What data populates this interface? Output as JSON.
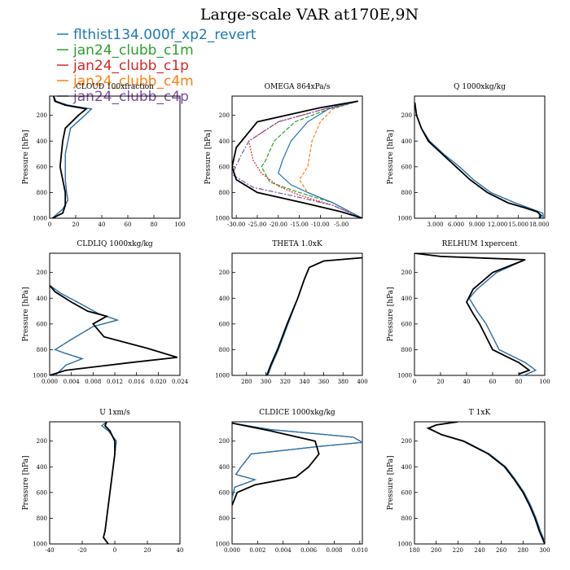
{
  "title": "Large-scale VAR at170E,9N",
  "legend": [
    {
      "name": "flthist134.000f_xp2_revert",
      "color": "#1f77b4"
    },
    {
      "name": "jan24_clubb_c1m",
      "color": "#2ca02c"
    },
    {
      "name": "jan24_clubb_c1p",
      "color": "#d62728"
    },
    {
      "name": "jan24_clubb_c4m",
      "color": "#ff7f0e"
    },
    {
      "name": "jan24_clubb_c4p",
      "color": "#7b4ea3"
    }
  ],
  "black_color": "#000000",
  "chart_data": [
    {
      "type": "line",
      "title": "CLOUD  100xfraction",
      "ylabel": "Pressure [hPa]",
      "xlim": [
        0,
        100
      ],
      "xticks": [
        0,
        20,
        40,
        60,
        80,
        100
      ],
      "xtick_labels": [
        "0",
        "20",
        "40",
        "60",
        "80",
        "100"
      ],
      "ylim": [
        1000,
        50
      ],
      "yticks": [
        200,
        400,
        600,
        800,
        1000
      ],
      "black": [
        [
          3,
          50
        ],
        [
          4,
          90
        ],
        [
          12,
          120
        ],
        [
          28,
          150
        ],
        [
          22,
          200
        ],
        [
          12,
          300
        ],
        [
          10,
          400
        ],
        [
          9,
          500
        ],
        [
          8,
          600
        ],
        [
          10,
          700
        ],
        [
          12,
          800
        ],
        [
          12,
          900
        ],
        [
          10,
          960
        ],
        [
          2,
          1000
        ]
      ],
      "others": [
        [
          3,
          50
        ],
        [
          5,
          90
        ],
        [
          14,
          120
        ],
        [
          32,
          150
        ],
        [
          27,
          200
        ],
        [
          16,
          300
        ],
        [
          14,
          400
        ],
        [
          12,
          500
        ],
        [
          12,
          600
        ],
        [
          12,
          700
        ],
        [
          13,
          800
        ],
        [
          14,
          860
        ],
        [
          10,
          930
        ],
        [
          2,
          1000
        ]
      ]
    },
    {
      "type": "line",
      "title": "OMEGA  864xPa/s",
      "ylabel": "Pressure [hPa]",
      "xlim": [
        -31,
        0
      ],
      "xticks": [
        -30,
        -25,
        -20,
        -15,
        -10,
        -5
      ],
      "xtick_labels": [
        "-30.00",
        "-25.00",
        "-20.00",
        "-15.00",
        "-10.00",
        "-5.00"
      ],
      "ylim": [
        1000,
        50
      ],
      "yticks": [
        200,
        400,
        600,
        800,
        1000
      ],
      "black": [
        [
          -1,
          90
        ],
        [
          -10,
          140
        ],
        [
          -25,
          250
        ],
        [
          -30,
          450
        ],
        [
          -31,
          600
        ],
        [
          -30,
          700
        ],
        [
          -25,
          800
        ],
        [
          -14,
          880
        ],
        [
          -5,
          950
        ],
        [
          0,
          1000
        ]
      ],
      "series": [
        {
          "values": [
            [
              -1,
              90
            ],
            [
              -8,
              150
            ],
            [
              -13,
              250
            ],
            [
              -17,
              400
            ],
            [
              -19,
              550
            ],
            [
              -20,
              650
            ],
            [
              -17,
              740
            ],
            [
              -13,
              800
            ],
            [
              -7,
              880
            ],
            [
              0,
              1000
            ]
          ]
        },
        {
          "values": [
            [
              -1,
              90
            ],
            [
              -8,
              150
            ],
            [
              -16,
              250
            ],
            [
              -21,
              400
            ],
            [
              -23,
              550
            ],
            [
              -24,
              600
            ],
            [
              -22,
              720
            ],
            [
              -15,
              800
            ],
            [
              -7,
              880
            ],
            [
              0,
              1000
            ]
          ]
        },
        {
          "values": [
            [
              -1,
              90
            ],
            [
              -9,
              150
            ],
            [
              -20,
              250
            ],
            [
              -27,
              400
            ],
            [
              -26,
              550
            ],
            [
              -24,
              650
            ],
            [
              -20,
              750
            ],
            [
              -15,
              820
            ],
            [
              -7,
              900
            ],
            [
              0,
              1000
            ]
          ]
        },
        {
          "values": [
            [
              -1,
              90
            ],
            [
              -7,
              150
            ],
            [
              -10,
              250
            ],
            [
              -12,
              400
            ],
            [
              -13,
              600
            ],
            [
              -15,
              700
            ],
            [
              -13,
              800
            ],
            [
              -7,
              880
            ],
            [
              0,
              1000
            ]
          ]
        },
        {
          "values": [
            [
              -1,
              90
            ],
            [
              -9,
              150
            ],
            [
              -20,
              250
            ],
            [
              -27,
              400
            ],
            [
              -29,
              520
            ],
            [
              -31,
              660
            ],
            [
              -26,
              760
            ],
            [
              -16,
              830
            ],
            [
              -7,
              900
            ],
            [
              0,
              1000
            ]
          ]
        }
      ]
    },
    {
      "type": "line",
      "title": "Q  1000xkg/kg",
      "ylabel": "Pressure [hPa]",
      "xlim": [
        0,
        18.8
      ],
      "xticks": [
        3,
        6,
        9,
        12,
        15,
        18
      ],
      "xtick_labels": [
        "3.000",
        "6.000",
        "9.000",
        "12.000",
        "15.000",
        "18.000"
      ],
      "ylim": [
        1000,
        50
      ],
      "yticks": [
        200,
        400,
        600,
        800,
        1000
      ],
      "black": [
        [
          0.05,
          100
        ],
        [
          0.3,
          200
        ],
        [
          1,
          300
        ],
        [
          2,
          400
        ],
        [
          4,
          500
        ],
        [
          6,
          600
        ],
        [
          8,
          700
        ],
        [
          10.5,
          800
        ],
        [
          13.5,
          880
        ],
        [
          16,
          920
        ],
        [
          17.7,
          950
        ],
        [
          18.3,
          980
        ],
        [
          18,
          1000
        ]
      ],
      "others": [
        [
          0.05,
          100
        ],
        [
          0.3,
          200
        ],
        [
          1,
          300
        ],
        [
          2.2,
          400
        ],
        [
          4.2,
          500
        ],
        [
          6.5,
          600
        ],
        [
          8.5,
          700
        ],
        [
          11,
          800
        ],
        [
          14.5,
          880
        ],
        [
          17,
          930
        ],
        [
          18.5,
          960
        ],
        [
          18.6,
          990
        ],
        [
          18.3,
          1000
        ]
      ]
    },
    {
      "type": "line",
      "title": "CLDLIQ  1000xkg/kg",
      "ylabel": "Pressure [hPa]",
      "xlim": [
        0,
        0.024
      ],
      "xticks": [
        0,
        0.004,
        0.008,
        0.012,
        0.016,
        0.02,
        0.024
      ],
      "xtick_labels": [
        "0.000",
        "0.004",
        "0.008",
        "0.012",
        "0.016",
        "0.020",
        "0.024"
      ],
      "ylim": [
        1000,
        50
      ],
      "yticks": [
        200,
        400,
        600,
        800,
        1000
      ],
      "black": [
        [
          0,
          300
        ],
        [
          0.001,
          350
        ],
        [
          0.004,
          430
        ],
        [
          0.007,
          500
        ],
        [
          0.0105,
          540
        ],
        [
          0.008,
          600
        ],
        [
          0.01,
          700
        ],
        [
          0.018,
          790
        ],
        [
          0.0235,
          860
        ],
        [
          0.015,
          900
        ],
        [
          0.003,
          960
        ],
        [
          0,
          1000
        ]
      ],
      "others": [
        [
          0,
          300
        ],
        [
          0.002,
          360
        ],
        [
          0.006,
          450
        ],
        [
          0.009,
          520
        ],
        [
          0.0125,
          570
        ],
        [
          0.008,
          620
        ],
        [
          0.004,
          720
        ],
        [
          0.001,
          800
        ],
        [
          0.003,
          830
        ],
        [
          0.006,
          870
        ],
        [
          0.003,
          920
        ],
        [
          0.001,
          1000
        ]
      ]
    },
    {
      "type": "line",
      "title": "THETA  1.0xK",
      "ylabel": "",
      "xlim": [
        265,
        400
      ],
      "xticks": [
        280,
        300,
        320,
        340,
        360,
        380,
        400
      ],
      "xtick_labels": [
        "280",
        "300",
        "320",
        "340",
        "360",
        "380",
        "400"
      ],
      "ylim": [
        1000,
        50
      ],
      "yticks": [
        200,
        400,
        600,
        800,
        1000
      ],
      "black": [
        [
          400,
          85
        ],
        [
          360,
          110
        ],
        [
          345,
          160
        ],
        [
          340,
          250
        ],
        [
          333,
          400
        ],
        [
          322,
          600
        ],
        [
          312,
          800
        ],
        [
          305,
          920
        ],
        [
          301,
          1000
        ]
      ],
      "others": [
        [
          400,
          85
        ],
        [
          360,
          110
        ],
        [
          345,
          160
        ],
        [
          340,
          250
        ],
        [
          333,
          400
        ],
        [
          323,
          600
        ],
        [
          313,
          800
        ],
        [
          306,
          920
        ],
        [
          302,
          1000
        ]
      ]
    },
    {
      "type": "line",
      "title": "RELHUM  1xpercent",
      "ylabel": "Pressure [hPa]",
      "xlim": [
        0,
        100
      ],
      "xticks": [
        0,
        20,
        40,
        60,
        80,
        100
      ],
      "xtick_labels": [
        "0",
        "20",
        "40",
        "60",
        "80",
        "100"
      ],
      "ylim": [
        1000,
        50
      ],
      "yticks": [
        200,
        400,
        600,
        800,
        1000
      ],
      "black": [
        [
          0,
          50
        ],
        [
          20,
          75
        ],
        [
          85,
          100
        ],
        [
          60,
          200
        ],
        [
          45,
          330
        ],
        [
          40,
          430
        ],
        [
          45,
          520
        ],
        [
          50,
          600
        ],
        [
          55,
          700
        ],
        [
          60,
          800
        ],
        [
          80,
          900
        ],
        [
          88,
          960
        ],
        [
          80,
          990
        ]
      ],
      "others": [
        [
          0,
          50
        ],
        [
          20,
          75
        ],
        [
          85,
          100
        ],
        [
          63,
          200
        ],
        [
          48,
          330
        ],
        [
          42,
          400
        ],
        [
          48,
          500
        ],
        [
          55,
          600
        ],
        [
          60,
          700
        ],
        [
          65,
          800
        ],
        [
          85,
          900
        ],
        [
          93,
          960
        ],
        [
          84,
          1000
        ]
      ]
    },
    {
      "type": "line",
      "title": "U  1xm/s",
      "ylabel": "Pressure [hPa]",
      "xlim": [
        -40,
        40
      ],
      "xticks": [
        -40,
        -20,
        0,
        20,
        40
      ],
      "xtick_labels": [
        "-40",
        "-20",
        "0",
        "20",
        "40"
      ],
      "ylim": [
        1000,
        50
      ],
      "yticks": [
        200,
        400,
        600,
        800,
        1000
      ],
      "black": [
        [
          -5,
          50
        ],
        [
          -6,
          80
        ],
        [
          -3,
          120
        ],
        [
          0,
          200
        ],
        [
          0,
          300
        ],
        [
          -2,
          500
        ],
        [
          -4,
          700
        ],
        [
          -6,
          900
        ],
        [
          -7,
          950
        ],
        [
          -4,
          1000
        ]
      ],
      "others": [
        [
          -5,
          50
        ],
        [
          -8,
          80
        ],
        [
          -4,
          120
        ],
        [
          1,
          200
        ],
        [
          0,
          300
        ],
        [
          -2,
          500
        ],
        [
          -4,
          700
        ],
        [
          -6,
          900
        ],
        [
          -7,
          950
        ],
        [
          -4,
          1000
        ]
      ]
    },
    {
      "type": "line",
      "title": "CLDICE  1000xkg/kg",
      "ylabel": "",
      "xlim": [
        0,
        0.0102
      ],
      "xticks": [
        0,
        0.002,
        0.004,
        0.006,
        0.008,
        0.01
      ],
      "xtick_labels": [
        "0.000",
        "0.002",
        "0.004",
        "0.006",
        "0.008",
        "0.010"
      ],
      "ylim": [
        1000,
        50
      ],
      "yticks": [
        200,
        400,
        600,
        800,
        1000
      ],
      "black": [
        [
          0,
          60
        ],
        [
          0.003,
          120
        ],
        [
          0.0065,
          200
        ],
        [
          0.0068,
          300
        ],
        [
          0.006,
          400
        ],
        [
          0.005,
          480
        ],
        [
          0.0018,
          540
        ],
        [
          0.0004,
          600
        ],
        [
          0,
          700
        ]
      ],
      "others": [
        [
          0,
          60
        ],
        [
          0.003,
          110
        ],
        [
          0.0095,
          170
        ],
        [
          0.0102,
          210
        ],
        [
          0.007,
          240
        ],
        [
          0.0015,
          300
        ],
        [
          0.0007,
          400
        ],
        [
          0.0003,
          460
        ],
        [
          0.0018,
          500
        ],
        [
          0.0002,
          560
        ],
        [
          0,
          650
        ]
      ]
    },
    {
      "type": "line",
      "title": "T  1xK",
      "ylabel": "Pressure [hPa]",
      "xlim": [
        180,
        300
      ],
      "xticks": [
        180,
        200,
        220,
        240,
        260,
        280,
        300
      ],
      "xtick_labels": [
        "180",
        "200",
        "220",
        "240",
        "260",
        "280",
        "300"
      ],
      "ylim": [
        1000,
        50
      ],
      "yticks": [
        200,
        400,
        600,
        800,
        1000
      ],
      "black": [
        [
          220,
          50
        ],
        [
          200,
          75
        ],
        [
          193,
          100
        ],
        [
          205,
          150
        ],
        [
          225,
          200
        ],
        [
          248,
          300
        ],
        [
          263,
          400
        ],
        [
          272,
          500
        ],
        [
          280,
          600
        ],
        [
          286,
          700
        ],
        [
          291,
          800
        ],
        [
          295,
          900
        ],
        [
          300,
          1000
        ]
      ],
      "others": [
        [
          220,
          50
        ],
        [
          200,
          75
        ],
        [
          192,
          100
        ],
        [
          205,
          150
        ],
        [
          226,
          200
        ],
        [
          249,
          300
        ],
        [
          264,
          400
        ],
        [
          273,
          500
        ],
        [
          281,
          600
        ],
        [
          287,
          700
        ],
        [
          292,
          800
        ],
        [
          296,
          900
        ],
        [
          301,
          1000
        ]
      ]
    }
  ]
}
